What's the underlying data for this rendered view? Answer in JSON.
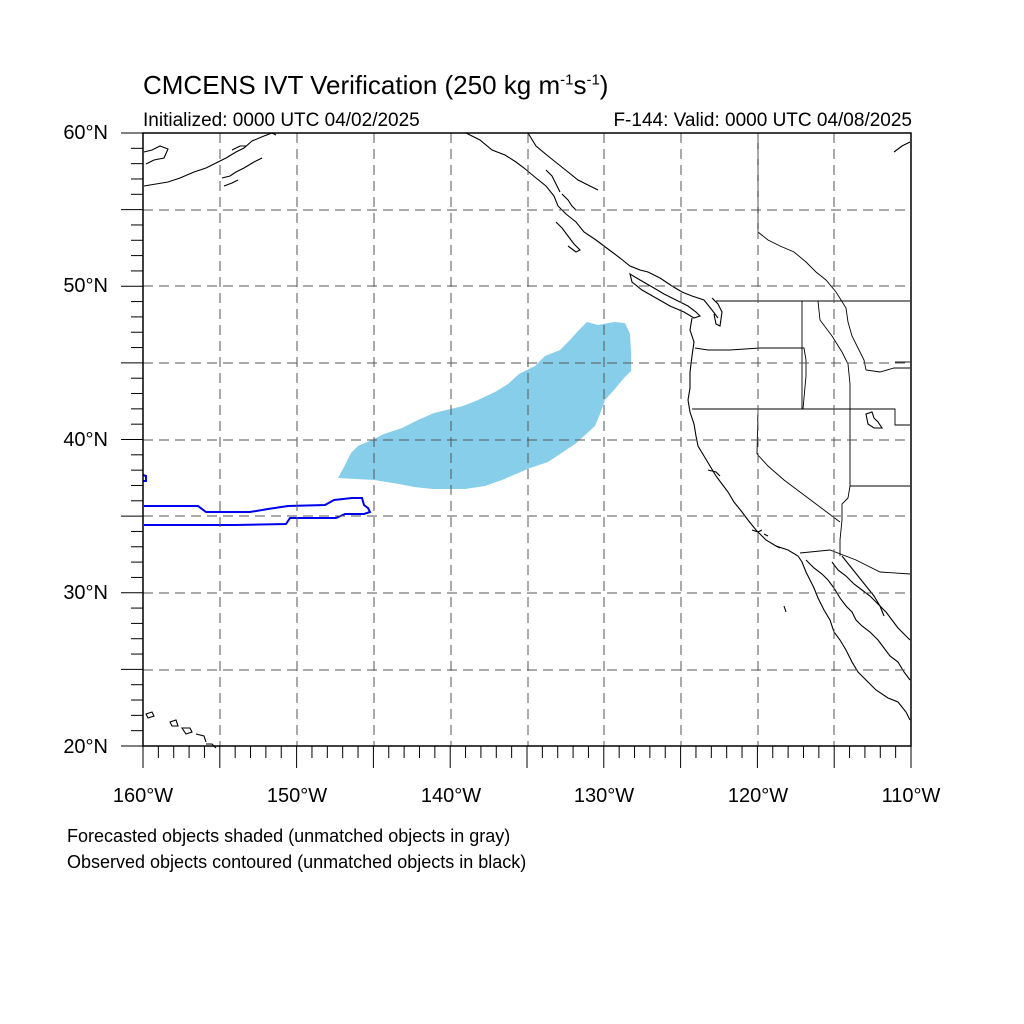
{
  "title": {
    "main": "CMCENS IVT Verification (250 kg m",
    "sup1": "-1",
    "mid": "s",
    "sup2": "-1",
    "end": ")"
  },
  "subtitle": {
    "initialized": "Initialized: 0000 UTC 04/02/2025",
    "valid": "F-144: Valid: 0000 UTC 04/08/2025"
  },
  "map": {
    "lon_range": [
      -160,
      -110
    ],
    "lat_range": [
      20,
      60
    ],
    "lat_ticks": [
      "20°N",
      "30°N",
      "40°N",
      "50°N",
      "60°N"
    ],
    "lon_ticks": [
      "160°W",
      "150°W",
      "140°W",
      "130°W",
      "120°W",
      "110°W"
    ],
    "gridlines": "dashed every 5°",
    "forecast_fill_color": "#87CEEB",
    "observed_contour_color": "#0000ee",
    "coastline_color": "#000000"
  },
  "captions": {
    "line1": "Forecasted objects shaded (unmatched objects in gray)",
    "line2": "Observed objects contoured (unmatched objects in black)"
  }
}
